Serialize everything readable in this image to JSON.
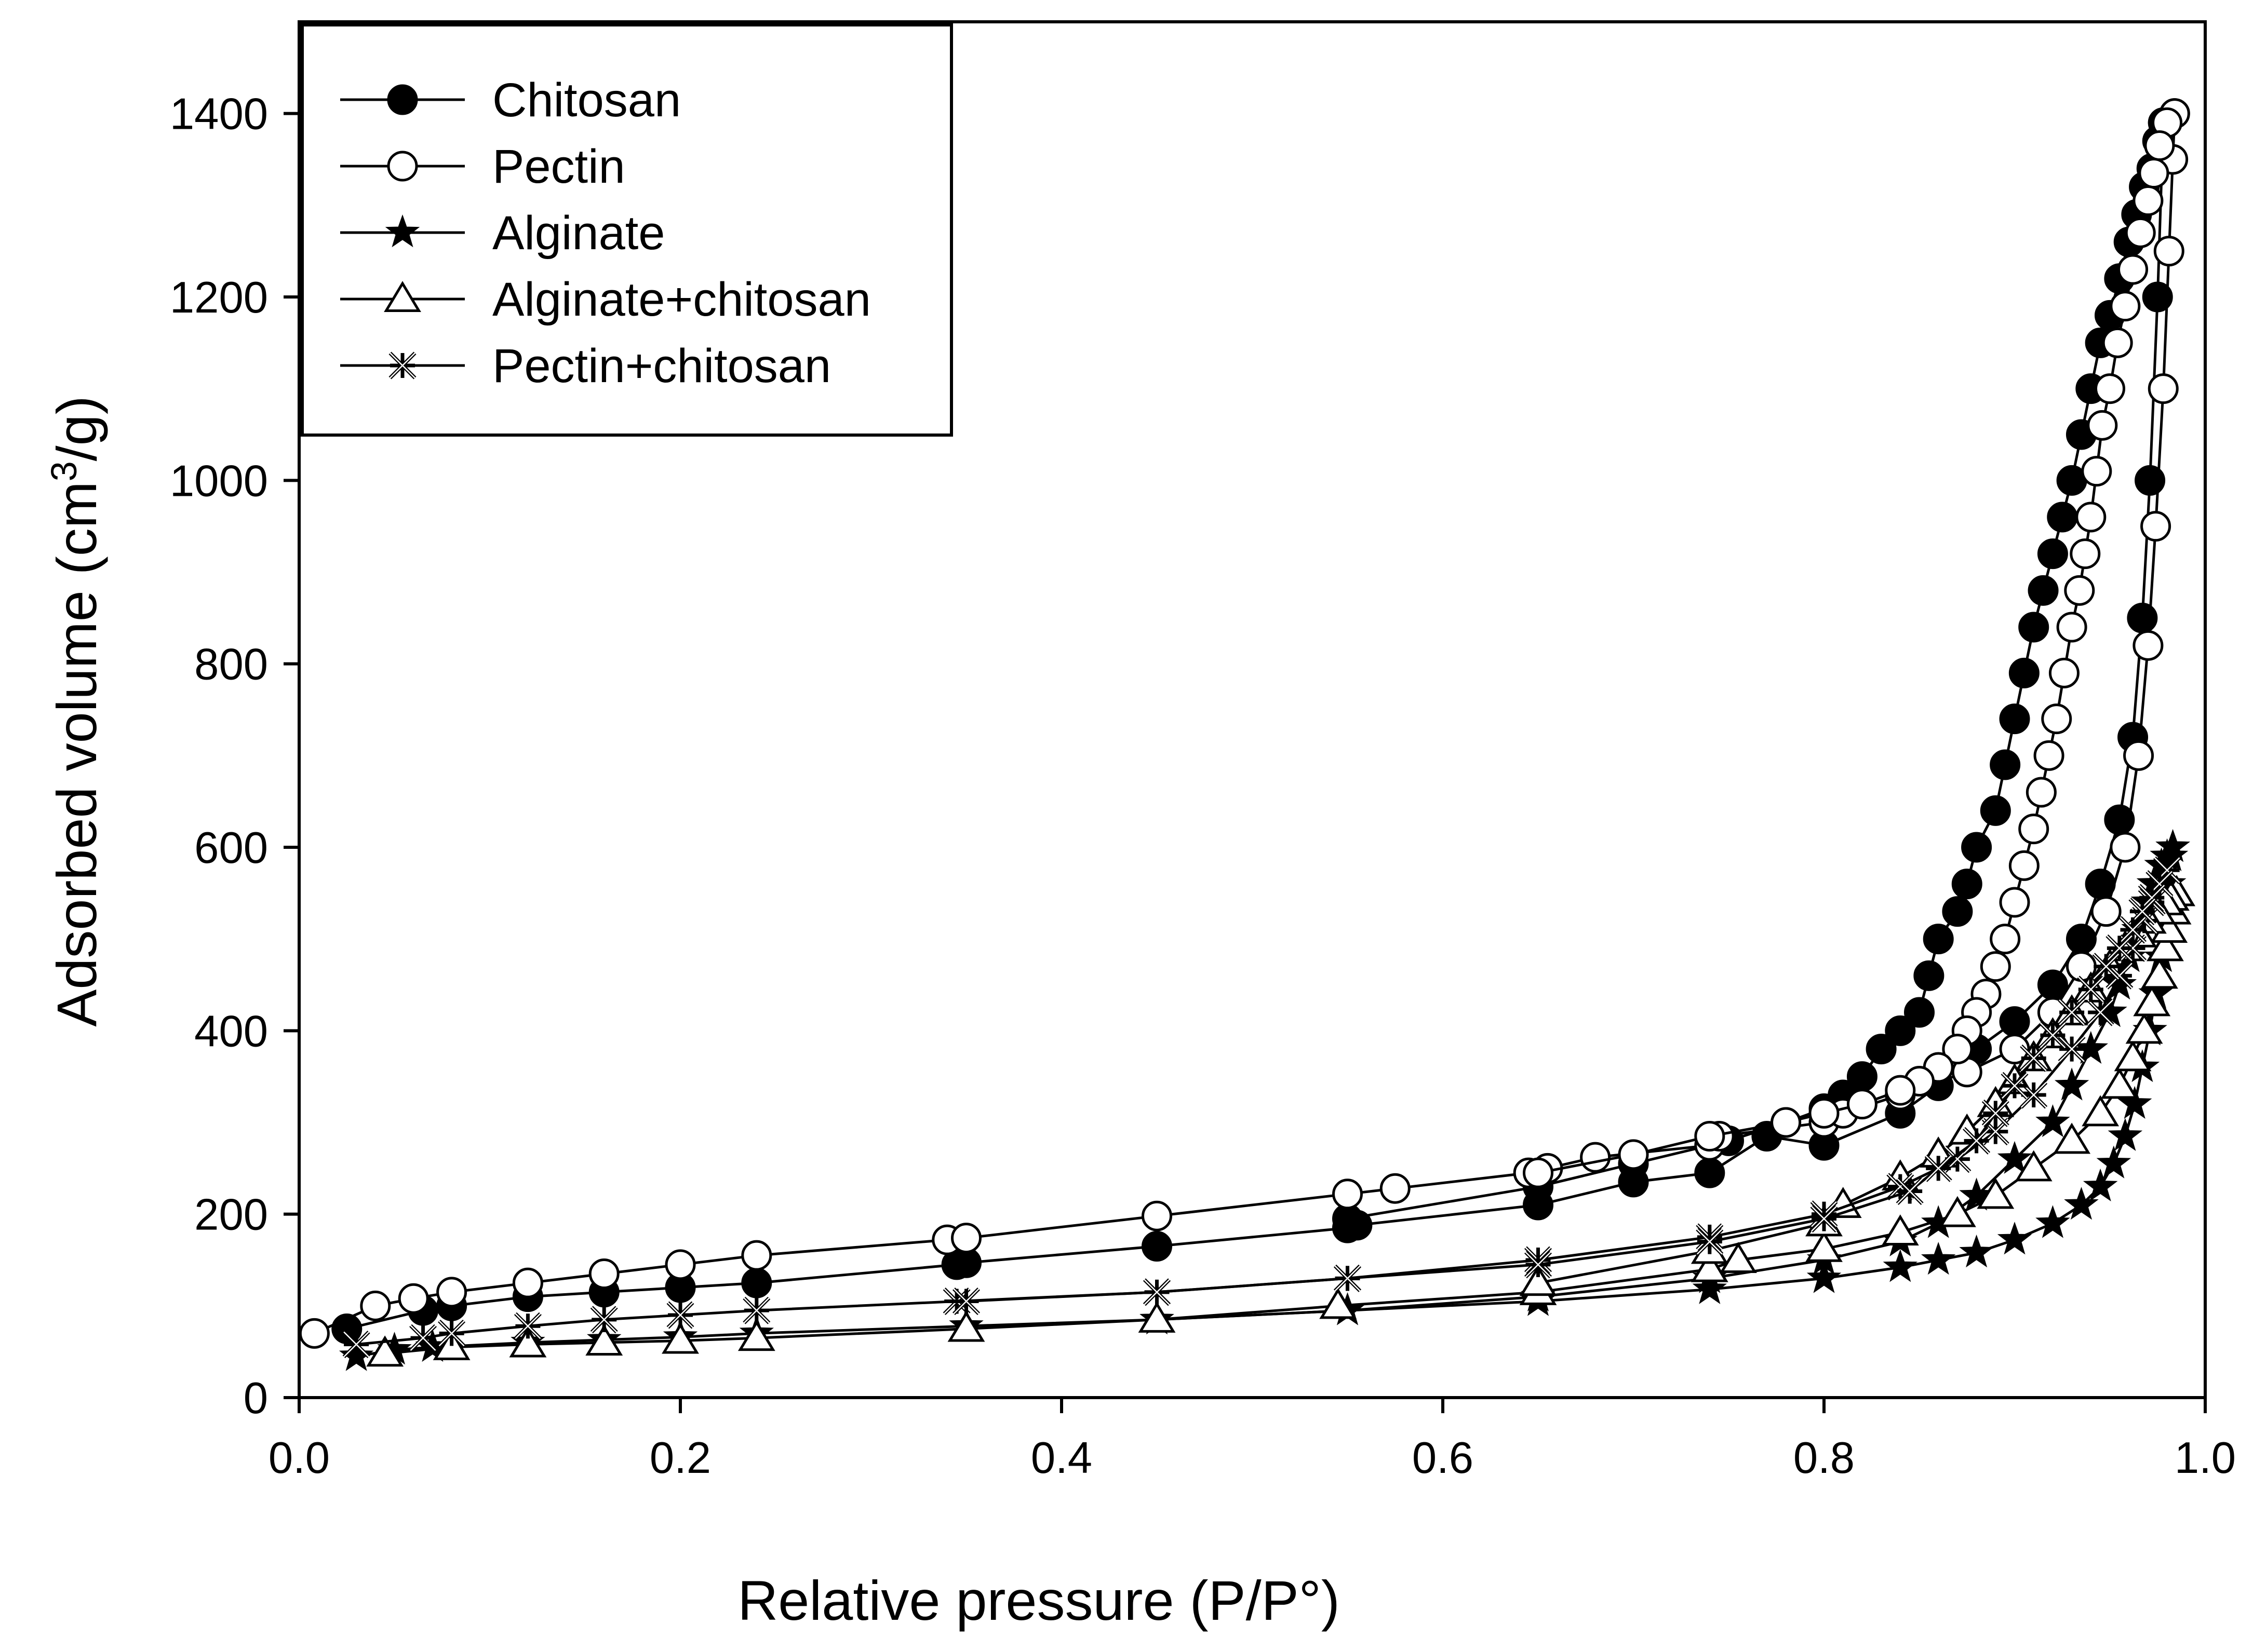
{
  "chart_data": {
    "type": "line",
    "title": "",
    "xlabel": "Relative pressure (P/P°)",
    "ylabel_parts": [
      "Adsorbed volume (cm",
      "3",
      "/g)"
    ],
    "xlim": [
      0.0,
      1.0
    ],
    "ylim": [
      0,
      1500
    ],
    "x_ticks": [
      0.0,
      0.2,
      0.4,
      0.6,
      0.8,
      1.0
    ],
    "x_tick_labels": [
      "0.0",
      "0.2",
      "0.4",
      "0.6",
      "0.8",
      "1.0"
    ],
    "y_ticks": [
      0,
      200,
      400,
      600,
      800,
      1000,
      1200,
      1400
    ],
    "y_tick_labels": [
      "0",
      "200",
      "400",
      "600",
      "800",
      "1000",
      "1200",
      "1400"
    ],
    "grid": false,
    "legend_position": "top-left",
    "series": [
      {
        "name": "Chitosan",
        "marker": "filled-circle",
        "adsorption": {
          "x": [
            0.025,
            0.065,
            0.08,
            0.12,
            0.16,
            0.2,
            0.24,
            0.345,
            0.35,
            0.45,
            0.55,
            0.555,
            0.65,
            0.7,
            0.74,
            0.77,
            0.8,
            0.84,
            0.86,
            0.88,
            0.9,
            0.92,
            0.935,
            0.945,
            0.955,
            0.962,
            0.967,
            0.971,
            0.975,
            0.978
          ],
          "y": [
            75,
            95,
            100,
            110,
            115,
            120,
            125,
            145,
            147,
            165,
            185,
            188,
            210,
            235,
            245,
            285,
            275,
            310,
            340,
            380,
            410,
            450,
            500,
            560,
            630,
            720,
            850,
            1000,
            1200,
            1390
          ]
        },
        "desorption": {
          "x": [
            0.978,
            0.975,
            0.972,
            0.968,
            0.964,
            0.96,
            0.955,
            0.95,
            0.945,
            0.94,
            0.935,
            0.93,
            0.925,
            0.92,
            0.915,
            0.91,
            0.905,
            0.9,
            0.895,
            0.89,
            0.88,
            0.875,
            0.87,
            0.86,
            0.855,
            0.85,
            0.84,
            0.83,
            0.82,
            0.81,
            0.8,
            0.78,
            0.75,
            0.7,
            0.65,
            0.55
          ],
          "y": [
            1390,
            1370,
            1340,
            1320,
            1290,
            1260,
            1220,
            1180,
            1150,
            1100,
            1050,
            1000,
            960,
            920,
            880,
            840,
            790,
            740,
            690,
            640,
            600,
            560,
            530,
            500,
            460,
            420,
            400,
            380,
            350,
            330,
            315,
            300,
            280,
            255,
            230,
            195
          ]
        }
      },
      {
        "name": "Pectin",
        "marker": "open-circle",
        "adsorption": {
          "x": [
            0.008,
            0.04,
            0.06,
            0.08,
            0.12,
            0.16,
            0.2,
            0.24,
            0.34,
            0.35,
            0.45,
            0.55,
            0.575,
            0.645,
            0.655,
            0.68,
            0.74,
            0.745,
            0.8,
            0.81,
            0.84,
            0.875,
            0.9,
            0.92,
            0.935,
            0.948,
            0.958,
            0.965,
            0.97,
            0.974,
            0.978,
            0.981,
            0.983,
            0.984
          ],
          "y": [
            70,
            100,
            108,
            115,
            125,
            135,
            145,
            155,
            172,
            174,
            198,
            222,
            228,
            245,
            250,
            262,
            275,
            285,
            300,
            310,
            330,
            355,
            380,
            420,
            470,
            530,
            600,
            700,
            820,
            950,
            1100,
            1250,
            1350,
            1400
          ]
        },
        "desorption": {
          "x": [
            0.984,
            0.98,
            0.976,
            0.973,
            0.97,
            0.966,
            0.962,
            0.958,
            0.954,
            0.95,
            0.946,
            0.943,
            0.94,
            0.937,
            0.934,
            0.93,
            0.926,
            0.922,
            0.918,
            0.914,
            0.91,
            0.905,
            0.9,
            0.895,
            0.89,
            0.885,
            0.88,
            0.875,
            0.87,
            0.86,
            0.85,
            0.84,
            0.82,
            0.8,
            0.78,
            0.74,
            0.7,
            0.65
          ],
          "y": [
            1400,
            1390,
            1365,
            1335,
            1305,
            1270,
            1230,
            1190,
            1150,
            1100,
            1060,
            1010,
            960,
            920,
            880,
            840,
            790,
            740,
            700,
            660,
            620,
            580,
            540,
            500,
            470,
            440,
            420,
            400,
            380,
            360,
            345,
            335,
            320,
            310,
            300,
            285,
            265,
            245
          ]
        }
      },
      {
        "name": "Alginate",
        "marker": "filled-star",
        "adsorption": {
          "x": [
            0.03,
            0.05,
            0.07,
            0.12,
            0.16,
            0.2,
            0.24,
            0.35,
            0.45,
            0.55,
            0.65,
            0.74,
            0.8,
            0.84,
            0.86,
            0.88,
            0.9,
            0.92,
            0.935,
            0.945,
            0.952,
            0.958,
            0.963,
            0.967,
            0.971,
            0.974,
            0.977,
            0.979,
            0.981,
            0.982,
            0.983
          ],
          "y": [
            45,
            52,
            55,
            60,
            63,
            66,
            70,
            78,
            85,
            95,
            105,
            118,
            130,
            142,
            150,
            158,
            172,
            190,
            210,
            230,
            255,
            285,
            320,
            360,
            400,
            440,
            480,
            520,
            560,
            590,
            600
          ]
        },
        "desorption": {
          "x": [
            0.983,
            0.98,
            0.977,
            0.973,
            0.97,
            0.965,
            0.96,
            0.955,
            0.95,
            0.94,
            0.93,
            0.92,
            0.9,
            0.88,
            0.86,
            0.84,
            0.8,
            0.74,
            0.65,
            0.55,
            0.45
          ],
          "y": [
            600,
            590,
            580,
            560,
            540,
            510,
            480,
            450,
            420,
            380,
            340,
            300,
            260,
            220,
            190,
            170,
            150,
            130,
            110,
            95,
            85
          ]
        }
      },
      {
        "name": "Alginate+chitosan",
        "marker": "open-triangle",
        "adsorption": {
          "x": [
            0.045,
            0.08,
            0.12,
            0.16,
            0.2,
            0.24,
            0.35,
            0.45,
            0.545,
            0.65,
            0.74,
            0.755,
            0.8,
            0.84,
            0.87,
            0.89,
            0.91,
            0.93,
            0.945,
            0.955,
            0.962,
            0.968,
            0.972,
            0.976,
            0.979,
            0.981,
            0.983,
            0.985
          ],
          "y": [
            48,
            55,
            58,
            60,
            62,
            65,
            75,
            85,
            100,
            115,
            140,
            150,
            162,
            180,
            200,
            220,
            250,
            280,
            310,
            340,
            370,
            400,
            430,
            460,
            490,
            510,
            530,
            550
          ]
        },
        "desorption": {
          "x": [
            0.985,
            0.982,
            0.979,
            0.975,
            0.97,
            0.965,
            0.958,
            0.95,
            0.94,
            0.93,
            0.92,
            0.91,
            0.9,
            0.89,
            0.875,
            0.86,
            0.84,
            0.81,
            0.8,
            0.74,
            0.65
          ],
          "y": [
            550,
            545,
            540,
            530,
            520,
            505,
            490,
            470,
            445,
            420,
            395,
            370,
            345,
            320,
            290,
            265,
            240,
            210,
            190,
            160,
            125
          ]
        }
      },
      {
        "name": "Pectin+chitosan",
        "marker": "x-star",
        "adsorption": {
          "x": [
            0.03,
            0.065,
            0.08,
            0.12,
            0.16,
            0.2,
            0.24,
            0.345,
            0.45,
            0.55,
            0.65,
            0.74,
            0.8,
            0.84,
            0.87,
            0.89,
            0.91,
            0.93,
            0.945,
            0.955,
            0.962,
            0.968,
            0.972,
            0.976,
            0.98
          ],
          "y": [
            58,
            65,
            70,
            78,
            85,
            90,
            95,
            105,
            115,
            130,
            150,
            175,
            200,
            230,
            260,
            290,
            330,
            380,
            420,
            460,
            490,
            520,
            540,
            560,
            575
          ]
        },
        "desorption": {
          "x": [
            0.98,
            0.976,
            0.972,
            0.967,
            0.962,
            0.955,
            0.948,
            0.94,
            0.93,
            0.92,
            0.91,
            0.9,
            0.89,
            0.88,
            0.86,
            0.845,
            0.8,
            0.74,
            0.65,
            0.55,
            0.45,
            0.35
          ],
          "y": [
            575,
            560,
            545,
            530,
            510,
            490,
            470,
            445,
            420,
            395,
            370,
            340,
            310,
            280,
            250,
            225,
            195,
            170,
            145,
            130,
            115,
            105
          ]
        }
      }
    ]
  }
}
